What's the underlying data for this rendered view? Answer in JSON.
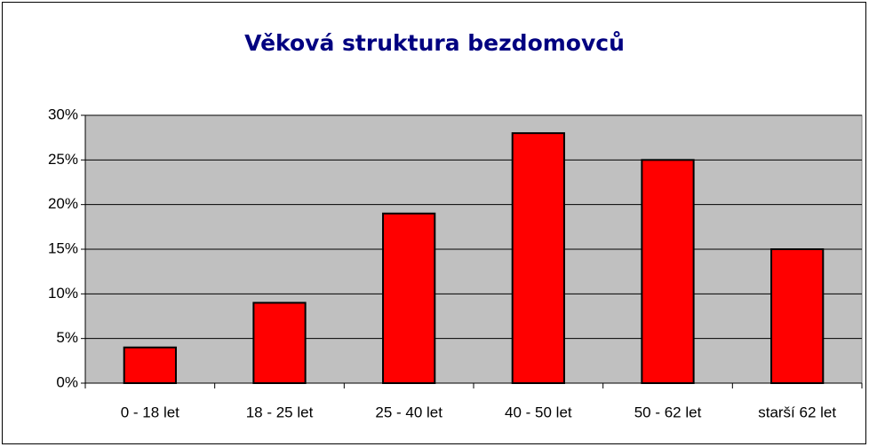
{
  "chart_data": {
    "type": "bar",
    "title": "Věková struktura bezdomovců",
    "categories": [
      "0 - 18 let",
      "18 - 25 let",
      "25 - 40 let",
      "40 - 50 let",
      "50 - 62 let",
      "starší 62 let"
    ],
    "values": [
      4,
      9,
      19,
      28,
      25,
      15
    ],
    "color": "#ff0000",
    "ylim": [
      0,
      30
    ],
    "yticks": [
      {
        "value": 0,
        "label": "0%"
      },
      {
        "value": 5,
        "label": "5%"
      },
      {
        "value": 10,
        "label": "10%"
      },
      {
        "value": 15,
        "label": "15%"
      },
      {
        "value": 20,
        "label": "20%"
      },
      {
        "value": 25,
        "label": "25%"
      },
      {
        "value": 30,
        "label": "30%"
      }
    ],
    "grid": true
  }
}
